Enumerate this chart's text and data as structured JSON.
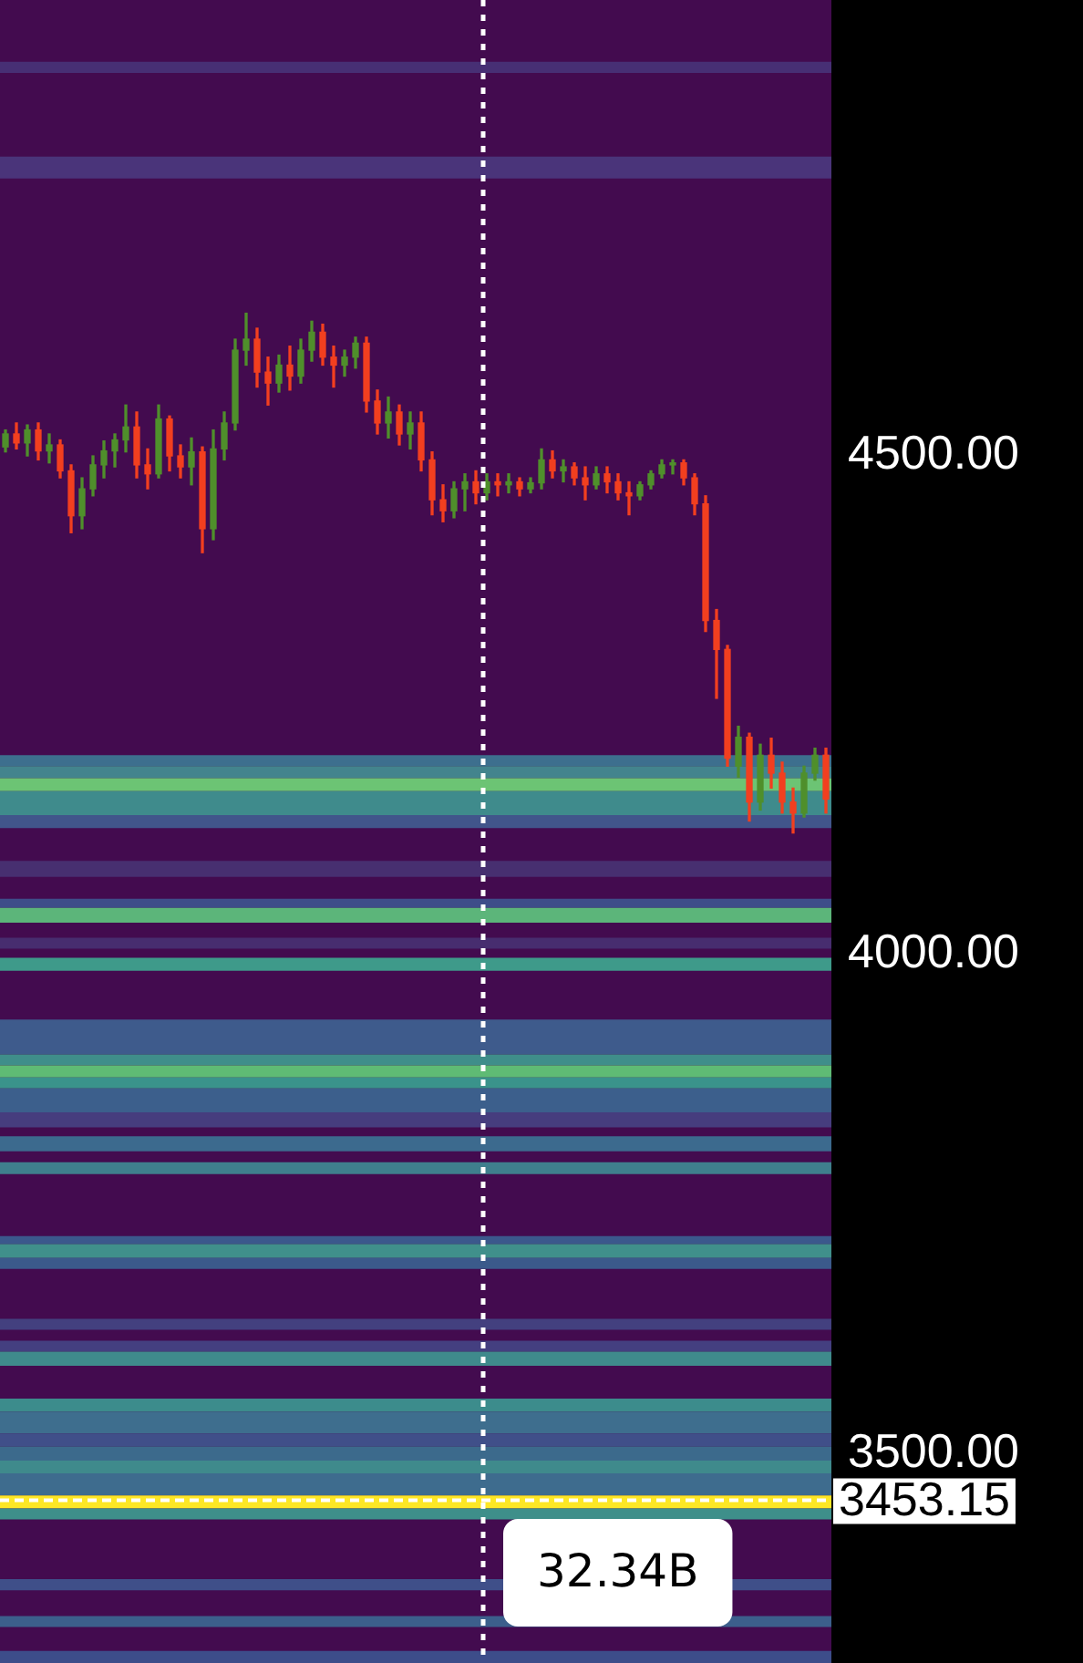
{
  "chart_data": {
    "type": "candlestick",
    "categories": [
      null,
      null,
      null,
      null,
      null,
      null,
      null,
      null,
      null,
      null,
      null,
      null,
      null,
      null,
      null,
      null,
      null,
      null,
      null,
      null,
      null,
      null,
      null,
      null,
      null,
      null,
      null,
      null,
      null,
      null,
      null,
      null,
      null,
      null,
      null,
      null,
      null,
      null,
      null,
      null,
      null,
      null,
      null,
      null,
      null,
      null,
      null,
      null,
      null,
      null,
      null,
      null,
      null,
      null,
      null,
      null,
      null,
      null,
      null,
      null,
      null,
      null,
      null,
      null,
      null,
      null,
      null,
      null,
      null,
      null,
      null,
      null,
      null,
      null,
      null,
      null
    ],
    "ohlc": [
      [
        4509,
        4526,
        4504,
        4522
      ],
      [
        4522,
        4533,
        4507,
        4513
      ],
      [
        4513,
        4531,
        4500,
        4526
      ],
      [
        4526,
        4533,
        4496,
        4505
      ],
      [
        4505,
        4522,
        4493,
        4511
      ],
      [
        4511,
        4516,
        4478,
        4485
      ],
      [
        4485,
        4491,
        4423,
        4440
      ],
      [
        4440,
        4478,
        4427,
        4467
      ],
      [
        4467,
        4500,
        4460,
        4491
      ],
      [
        4491,
        4515,
        4478,
        4505
      ],
      [
        4505,
        4522,
        4489,
        4516
      ],
      [
        4516,
        4551,
        4504,
        4529
      ],
      [
        4529,
        4544,
        4478,
        4491
      ],
      [
        4491,
        4507,
        4467,
        4482
      ],
      [
        4482,
        4551,
        4478,
        4537
      ],
      [
        4537,
        4540,
        4485,
        4500
      ],
      [
        4500,
        4511,
        4478,
        4489
      ],
      [
        4489,
        4518,
        4471,
        4504
      ],
      [
        4504,
        4509,
        4403,
        4427
      ],
      [
        4427,
        4526,
        4416,
        4507
      ],
      [
        4507,
        4544,
        4496,
        4533
      ],
      [
        4533,
        4617,
        4526,
        4606
      ],
      [
        4606,
        4643,
        4591,
        4617
      ],
      [
        4617,
        4628,
        4569,
        4584
      ],
      [
        4584,
        4599,
        4551,
        4573
      ],
      [
        4573,
        4601,
        4564,
        4591
      ],
      [
        4591,
        4610,
        4566,
        4580
      ],
      [
        4580,
        4617,
        4573,
        4606
      ],
      [
        4606,
        4635,
        4595,
        4624
      ],
      [
        4624,
        4632,
        4591,
        4599
      ],
      [
        4599,
        4610,
        4569,
        4591
      ],
      [
        4591,
        4606,
        4580,
        4599
      ],
      [
        4599,
        4619,
        4588,
        4613
      ],
      [
        4613,
        4619,
        4544,
        4555
      ],
      [
        4555,
        4566,
        4522,
        4533
      ],
      [
        4533,
        4559,
        4518,
        4544
      ],
      [
        4544,
        4551,
        4511,
        4522
      ],
      [
        4522,
        4544,
        4507,
        4533
      ],
      [
        4533,
        4544,
        4485,
        4496
      ],
      [
        4496,
        4504,
        4441,
        4456
      ],
      [
        4456,
        4471,
        4434,
        4445
      ],
      [
        4445,
        4474,
        4438,
        4467
      ],
      [
        4467,
        4482,
        4445,
        4474
      ],
      [
        4474,
        4485,
        4452,
        4463
      ],
      [
        4463,
        4482,
        4456,
        4474
      ],
      [
        4474,
        4482,
        4460,
        4471
      ],
      [
        4471,
        4482,
        4463,
        4474
      ],
      [
        4474,
        4478,
        4460,
        4467
      ],
      [
        4467,
        4478,
        4463,
        4473
      ],
      [
        4473,
        4507,
        4467,
        4496
      ],
      [
        4496,
        4505,
        4478,
        4485
      ],
      [
        4485,
        4496,
        4474,
        4489
      ],
      [
        4489,
        4493,
        4471,
        4478
      ],
      [
        4478,
        4489,
        4456,
        4471
      ],
      [
        4471,
        4489,
        4467,
        4482
      ],
      [
        4482,
        4489,
        4463,
        4474
      ],
      [
        4474,
        4482,
        4456,
        4463
      ],
      [
        4463,
        4474,
        4441,
        4460
      ],
      [
        4460,
        4474,
        4456,
        4471
      ],
      [
        4471,
        4485,
        4467,
        4482
      ],
      [
        4482,
        4496,
        4478,
        4491
      ],
      [
        4491,
        4496,
        4482,
        4493
      ],
      [
        4493,
        4496,
        4471,
        4478
      ],
      [
        4478,
        4482,
        4441,
        4452
      ],
      [
        4452,
        4460,
        4324,
        4335
      ],
      [
        4335,
        4346,
        4257,
        4306
      ],
      [
        4306,
        4310,
        4189,
        4197
      ],
      [
        4189,
        4229,
        4178,
        4218
      ],
      [
        4218,
        4222,
        4134,
        4153
      ],
      [
        4153,
        4211,
        4145,
        4200
      ],
      [
        4200,
        4217,
        4167,
        4182
      ],
      [
        4182,
        4193,
        4142,
        4153
      ],
      [
        4153,
        4167,
        4122,
        4142
      ],
      [
        4142,
        4189,
        4138,
        4182
      ],
      [
        4182,
        4207,
        4175,
        4200
      ],
      [
        4200,
        4207,
        4142,
        4156
      ]
    ],
    "colors": [
      "#4f8f2b",
      "#f23f1f",
      "#4f8f2b",
      "#f23f1f",
      "#4f8f2b",
      "#f23f1f",
      "#f23f1f",
      "#4f8f2b",
      "#4f8f2b",
      "#4f8f2b",
      "#4f8f2b",
      "#4f8f2b",
      "#f23f1f",
      "#f23f1f",
      "#4f8f2b",
      "#f23f1f",
      "#f23f1f",
      "#4f8f2b",
      "#f23f1f",
      "#4f8f2b",
      "#4f8f2b",
      "#4f8f2b",
      "#4f8f2b",
      "#f23f1f",
      "#f23f1f",
      "#4f8f2b",
      "#f23f1f",
      "#4f8f2b",
      "#4f8f2b",
      "#f23f1f",
      "#f23f1f",
      "#4f8f2b",
      "#4f8f2b",
      "#f23f1f",
      "#f23f1f",
      "#4f8f2b",
      "#f23f1f",
      "#4f8f2b",
      "#f23f1f",
      "#f23f1f",
      "#f23f1f",
      "#4f8f2b",
      "#4f8f2b",
      "#f23f1f",
      "#4f8f2b",
      "#f23f1f",
      "#4f8f2b",
      "#f23f1f",
      "#4f8f2b",
      "#4f8f2b",
      "#f23f1f",
      "#4f8f2b",
      "#f23f1f",
      "#f23f1f",
      "#4f8f2b",
      "#f23f1f",
      "#f23f1f",
      "#f23f1f",
      "#4f8f2b",
      "#4f8f2b",
      "#4f8f2b",
      "#4f8f2b",
      "#f23f1f",
      "#f23f1f",
      "#f23f1f",
      "#f23f1f",
      "#f23f1f",
      "#4f8f2b",
      "#f23f1f",
      "#4f8f2b",
      "#f23f1f",
      "#f23f1f",
      "#f23f1f",
      "#4f8f2b",
      "#4f8f2b",
      "#f23f1f"
    ],
    "ylim": [
      3290,
      4957
    ],
    "yticks": [
      {
        "value": 3500,
        "label": "3500.00"
      },
      {
        "value": 4000,
        "label": "4000.00"
      },
      {
        "value": 4500,
        "label": "4500.00"
      }
    ],
    "tick_labels": "y",
    "grid": false,
    "legend": false,
    "bands": [
      {
        "axis": "y",
        "from": 4884,
        "to": 4895,
        "color": "#472f74"
      },
      {
        "axis": "y",
        "from": 4778,
        "to": 4800,
        "color": "#4a347a"
      },
      {
        "axis": "y",
        "from": 4189,
        "to": 4200,
        "color": "#3d6f8e"
      },
      {
        "axis": "y",
        "from": 4177,
        "to": 4189,
        "color": "#43848d"
      },
      {
        "axis": "y",
        "from": 4164,
        "to": 4177,
        "color": "#6cc474"
      },
      {
        "axis": "y",
        "from": 4140,
        "to": 4164,
        "color": "#3f8b8c"
      },
      {
        "axis": "y",
        "from": 4127,
        "to": 4140,
        "color": "#41558b"
      },
      {
        "axis": "y",
        "from": 4078,
        "to": 4094,
        "color": "#472f70"
      },
      {
        "axis": "y",
        "from": 4047,
        "to": 4056,
        "color": "#3e4d89"
      },
      {
        "axis": "y",
        "from": 4032,
        "to": 4047,
        "color": "#5cb57a"
      },
      {
        "axis": "y",
        "from": 4006,
        "to": 4017,
        "color": "#472d6f"
      },
      {
        "axis": "y",
        "from": 3984,
        "to": 3997,
        "color": "#3e9a8a"
      },
      {
        "axis": "y",
        "from": 3900,
        "to": 3935,
        "color": "#3e5b8c"
      },
      {
        "axis": "y",
        "from": 3889,
        "to": 3900,
        "color": "#3f8e8a"
      },
      {
        "axis": "y",
        "from": 3877,
        "to": 3889,
        "color": "#5fbb74"
      },
      {
        "axis": "y",
        "from": 3866,
        "to": 3877,
        "color": "#3a938b"
      },
      {
        "axis": "y",
        "from": 3842,
        "to": 3866,
        "color": "#3c5f8c"
      },
      {
        "axis": "y",
        "from": 3827,
        "to": 3842,
        "color": "#463d7e"
      },
      {
        "axis": "y",
        "from": 3803,
        "to": 3818,
        "color": "#3c6a8e"
      },
      {
        "axis": "y",
        "from": 3780,
        "to": 3792,
        "color": "#3f7f8d"
      },
      {
        "axis": "y",
        "from": 3710,
        "to": 3718,
        "color": "#3b588c"
      },
      {
        "axis": "y",
        "from": 3696,
        "to": 3710,
        "color": "#40908b"
      },
      {
        "axis": "y",
        "from": 3685,
        "to": 3696,
        "color": "#3b5a8b"
      },
      {
        "axis": "y",
        "from": 3624,
        "to": 3635,
        "color": "#43407f"
      },
      {
        "axis": "y",
        "from": 3602,
        "to": 3613,
        "color": "#443f80"
      },
      {
        "axis": "y",
        "from": 3588,
        "to": 3602,
        "color": "#3f8a8c"
      },
      {
        "axis": "y",
        "from": 3542,
        "to": 3555,
        "color": "#3c8c8c"
      },
      {
        "axis": "y",
        "from": 3520,
        "to": 3542,
        "color": "#3e6e8e"
      },
      {
        "axis": "y",
        "from": 3507,
        "to": 3520,
        "color": "#404f89"
      },
      {
        "axis": "y",
        "from": 3493,
        "to": 3507,
        "color": "#3c6a8c"
      },
      {
        "axis": "y",
        "from": 3480,
        "to": 3493,
        "color": "#3f8a8c"
      },
      {
        "axis": "y",
        "from": 3458,
        "to": 3480,
        "color": "#3e6c8e"
      },
      {
        "axis": "y",
        "from": 3445,
        "to": 3458,
        "color": "#fde725"
      },
      {
        "axis": "y",
        "from": 3434,
        "to": 3445,
        "color": "#3e8f8a"
      },
      {
        "axis": "y",
        "from": 3363,
        "to": 3374,
        "color": "#3f4f89"
      },
      {
        "axis": "y",
        "from": 3326,
        "to": 3337,
        "color": "#3c5f8c"
      },
      {
        "axis": "y",
        "from": 3290,
        "to": 3302,
        "color": "#3d4d8a"
      }
    ],
    "ref_lines": [
      {
        "axis": "y",
        "value": 3453.15,
        "label": "3453.15",
        "color": "#ffffff",
        "line_style": "dashed"
      }
    ],
    "annotations": [
      "32.34B"
    ]
  }
}
